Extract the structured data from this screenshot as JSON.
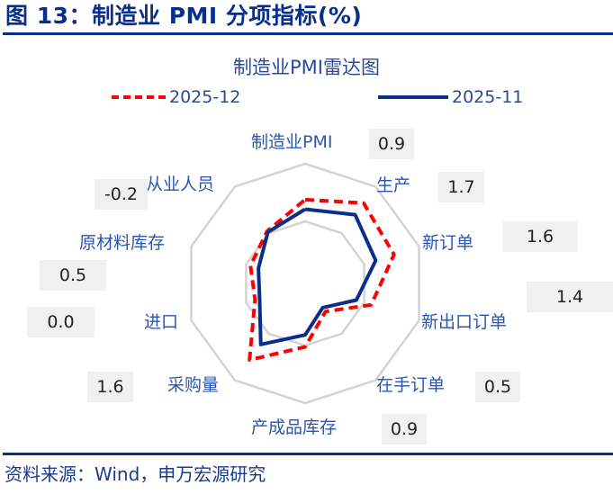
{
  "figure": {
    "title": "图 13：制造业 PMI 分项指标(%)",
    "source": "资料来源：Wind，申万宏源研究"
  },
  "colors": {
    "brand_blue": "#0a2f8a",
    "series_2025_12": "#ff0000",
    "series_2025_11": "#0a2f8a",
    "grid": "#d3d3d3",
    "label": "#2a55b0",
    "value_box": "#f0f0f0"
  },
  "chart_data": {
    "type": "radar",
    "title": "制造业PMI雷达图",
    "categories": [
      "制造业PMI",
      "生产",
      "新订单",
      "新出口订单",
      "在手订单",
      "产成品库存",
      "采购量",
      "进口",
      "原材料库存",
      "从业人员"
    ],
    "series": [
      {
        "name": "2025-12",
        "style": "dashed",
        "color": "#ff0000",
        "relative_radius": [
          0.7,
          0.83,
          0.78,
          0.58,
          0.29,
          0.53,
          0.79,
          0.44,
          0.48,
          0.54
        ]
      },
      {
        "name": "2025-11",
        "style": "solid",
        "color": "#0a2f8a",
        "relative_radius": [
          0.62,
          0.71,
          0.62,
          0.45,
          0.25,
          0.43,
          0.63,
          0.4,
          0.41,
          0.53
        ]
      }
    ],
    "change_labels": [
      "0.9",
      "1.7",
      "1.6",
      "1.4",
      "0.5",
      "0.9",
      "1.6",
      "0.0",
      "0.5",
      "-0.2"
    ],
    "grid_rings": 2,
    "legend_position": "top"
  },
  "legend": [
    {
      "label": "2025-12"
    },
    {
      "label": "2025-11"
    }
  ],
  "axis_labels": [
    {
      "text": "制造业PMI",
      "value": "0.9"
    },
    {
      "text": "生产",
      "value": "1.7"
    },
    {
      "text": "新订单",
      "value": "1.6"
    },
    {
      "text": "新出口订单",
      "value": "1.4"
    },
    {
      "text": "在手订单",
      "value": "0.5"
    },
    {
      "text": "产成品库存",
      "value": "0.9"
    },
    {
      "text": "采购量",
      "value": "1.6"
    },
    {
      "text": "进口",
      "value": "0.0"
    },
    {
      "text": "原材料库存",
      "value": "0.5"
    },
    {
      "text": "从业人员",
      "value": "-0.2"
    }
  ]
}
